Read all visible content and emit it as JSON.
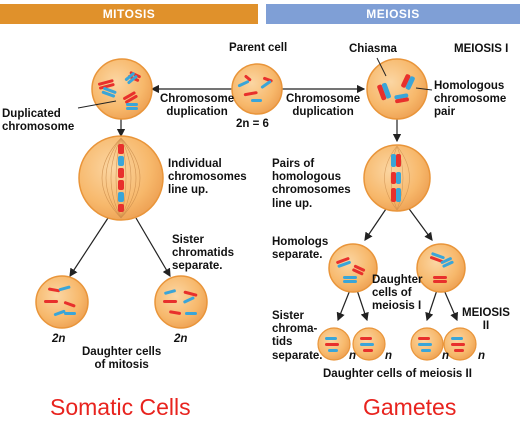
{
  "colors": {
    "mitosis_banner": "#e0912b",
    "meiosis_banner": "#7f9fd6",
    "cell_fill": "#f7b86b",
    "cell_edge": "#e9953a",
    "chrom_red": "#e8302c",
    "chrom_blue": "#3aa5d8",
    "caption_red": "#e8231e"
  },
  "banners": {
    "mitosis": "MITOSIS",
    "meiosis": "MEIOSIS"
  },
  "labels": {
    "parent_cell": "Parent cell",
    "two_n_6": "2n = 6",
    "chrom_dup_left": "Chromosome\nduplication",
    "chrom_dup_right": "Chromosome\nduplication",
    "duplicated_chromosome": "Duplicated\nchromosome",
    "chiasma": "Chiasma",
    "meiosis_1": "MEIOSIS I",
    "homologous_pair": "Homologous\nchromosome\npair",
    "individual_line_up": "Individual\nchromosomes\nline up.",
    "pairs_line_up": "Pairs of\nhomologous\nchromosomes\nline up.",
    "sister_separate": "Sister\nchromatids\nseparate.",
    "homologs_separate": "Homologs\nseparate.",
    "daughter_meiosis_1": "Daughter\ncells of\nmeiosis I",
    "meiosis_2": "MEIOSIS\nII",
    "sister_chromatids_sep": "Sister\nchroma-\ntids\nseparate.",
    "two_n_left": "2n",
    "two_n_right": "2n",
    "n_1": "n",
    "n_2": "n",
    "n_3": "n",
    "n_4": "n",
    "daughter_mitosis": "Daughter cells\nof mitosis",
    "daughter_meiosis_2": "Daughter cells of meiosis II"
  },
  "captions": {
    "somatic": "Somatic Cells",
    "gametes": "Gametes"
  }
}
